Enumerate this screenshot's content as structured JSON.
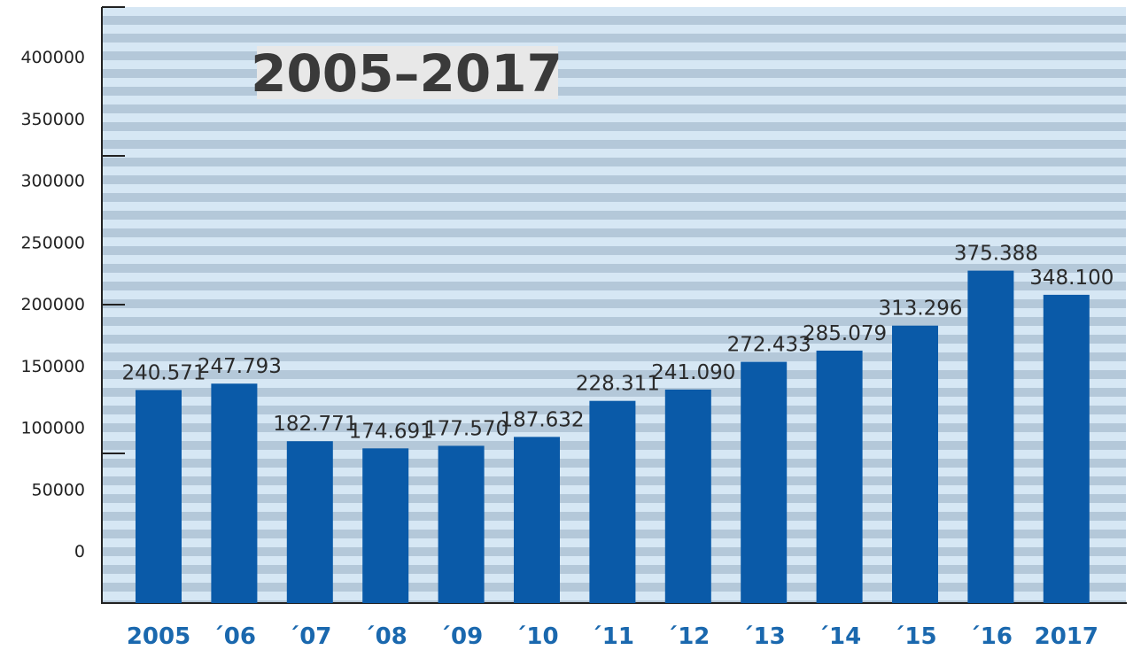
{
  "chart_data": {
    "type": "bar",
    "title": "2005–2017",
    "categories": [
      "2005",
      "´06",
      "´07",
      "´08",
      "´09",
      "´10",
      "´11",
      "´12",
      "´13",
      "´14",
      "´15",
      "´16",
      "2017"
    ],
    "values": [
      240571,
      247793,
      182771,
      174691,
      177570,
      187632,
      228311,
      241090,
      272433,
      285079,
      313296,
      375388,
      348100
    ],
    "value_labels": [
      "240.571",
      "247.793",
      "182.771",
      "174.691",
      "177.570",
      "187.632",
      "228.311",
      "241.090",
      "272.433",
      "285.079",
      "313.296",
      "375.388",
      "348.100"
    ],
    "yticks": [
      0,
      50000,
      100000,
      150000,
      200000,
      250000,
      300000,
      350000,
      400000
    ],
    "ylim": [
      0,
      400000
    ],
    "xlabel": "",
    "ylabel": "",
    "grid": true,
    "legend": "none",
    "colors": {
      "bar": "#0a5aa8",
      "stripe_light": "#d6e7f4",
      "stripe_mid": "#b4c8d9",
      "axis": "#222222",
      "x_tick_text": "#1a68ae",
      "title_box": "#e8e8e8"
    }
  }
}
